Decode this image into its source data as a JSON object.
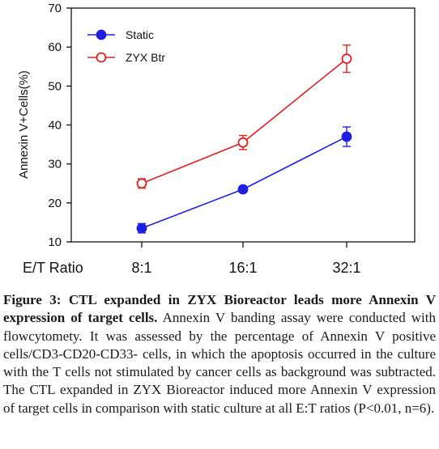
{
  "chart_data": {
    "type": "line",
    "title": "",
    "xlabel": "E/T Ratio",
    "ylabel": "Annexin V+Cells(%)",
    "categories": [
      "8:1",
      "16:1",
      "32:1"
    ],
    "ylim": [
      10,
      70
    ],
    "yticks": [
      10,
      20,
      30,
      40,
      50,
      60,
      70
    ],
    "grid": false,
    "legend_position": "top-left",
    "series": [
      {
        "name": "Static",
        "values": [
          13.5,
          23.5,
          37
        ],
        "errors": [
          1.2,
          0.8,
          2.5
        ],
        "color": "#1f1fe0",
        "marker": "filled-circle"
      },
      {
        "name": "ZYX Btr",
        "values": [
          25,
          35.5,
          57
        ],
        "errors": [
          1.2,
          1.8,
          3.5
        ],
        "color": "#e02020",
        "marker": "open-circle"
      }
    ]
  },
  "caption": {
    "bold": "Figure 3: CTL expanded in ZYX Bioreactor leads more Annexin V expression of target cells.",
    "text": " Annexin V banding assay were conducted with flowcytomety. It was assessed by the percentage of Annexin V positive cells/CD3-CD20-CD33- cells, in which the apoptosis occurred in the culture with the T cells not stimulated by cancer cells as background was subtracted. The CTL expanded in ZYX Bioreactor induced more Annexin V expression of target cells in comparison with static culture at all E:T ratios (P<0.01, n=6)."
  }
}
